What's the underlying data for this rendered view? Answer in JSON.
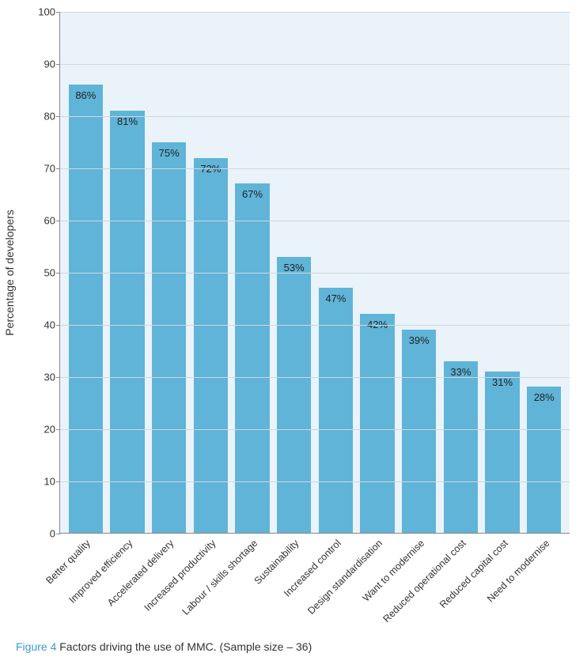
{
  "chart": {
    "type": "bar",
    "background_color": "#eaf3fa",
    "page_background": "#ffffff",
    "bar_color": "#5fb4d8",
    "grid_color": "#d0d7dd",
    "axis_color": "#888888",
    "text_color": "#333333",
    "y_axis_label": "Percentage of developers",
    "y_axis_fontsize": 14,
    "tick_fontsize": 13,
    "bar_label_fontsize": 13,
    "x_label_fontsize": 12.5,
    "x_label_rotation": -45,
    "ylim": [
      0,
      100
    ],
    "ytick_step": 10,
    "yticks": [
      0,
      10,
      20,
      30,
      40,
      50,
      60,
      70,
      80,
      90,
      100
    ],
    "bar_width": 0.82,
    "categories": [
      "Better quality",
      "Improved efficiency",
      "Accelerated delivery",
      "Increased productivity",
      "Labour / skills shortage",
      "Sustainability",
      "Increased control",
      "Design standardisation",
      "Want to modernise",
      "Reduced operational cost",
      "Reduced capital cost",
      "Need to modernise"
    ],
    "values": [
      86,
      81,
      75,
      72,
      67,
      53,
      47,
      42,
      39,
      33,
      31,
      28
    ],
    "value_labels": [
      "86%",
      "81%",
      "75%",
      "72%",
      "67%",
      "53%",
      "47%",
      "42%",
      "39%",
      "33%",
      "31%",
      "28%"
    ]
  },
  "caption": {
    "prefix": "Figure 4",
    "text": " Factors driving the use of MMC. (Sample size – 36)",
    "prefix_color": "#3a9bd4",
    "fontsize": 14
  }
}
